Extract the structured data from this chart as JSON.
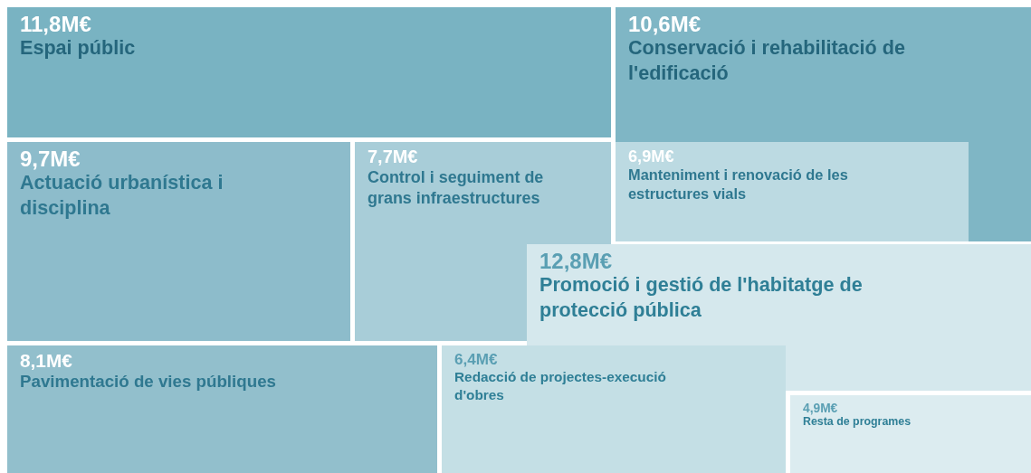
{
  "chart_data": {
    "type": "other",
    "categories": [
      "Espai públic",
      "Conservació i rehabilitació de l'edificació",
      "Actuació urbanística i disciplina",
      "Control i seguiment de grans infraestructures",
      "Manteniment i renovació de les estructures vials",
      "Promoció i gestió de l'habitatge de protecció pública",
      "Pavimentació de vies públiques",
      "Redacció de projectes-execució d'obres",
      "Resta de programes"
    ],
    "values": [
      11.8,
      10.6,
      9.7,
      7.7,
      6.9,
      12.8,
      8.1,
      6.4,
      4.9
    ],
    "value_labels": [
      "11,8M€",
      "10,6M€",
      "9,7M€",
      "7,7M€",
      "6,9M€",
      "12,8M€",
      "8,1M€",
      "6,4M€",
      "4,9M€"
    ],
    "colors": [
      "#79b3c2",
      "#7fb6c5",
      "#8dbccb",
      "#a8cdd8",
      "#bcdae2",
      "#d5e8ed",
      "#92bfcc",
      "#c4dfe5",
      "#dcecf0"
    ]
  }
}
